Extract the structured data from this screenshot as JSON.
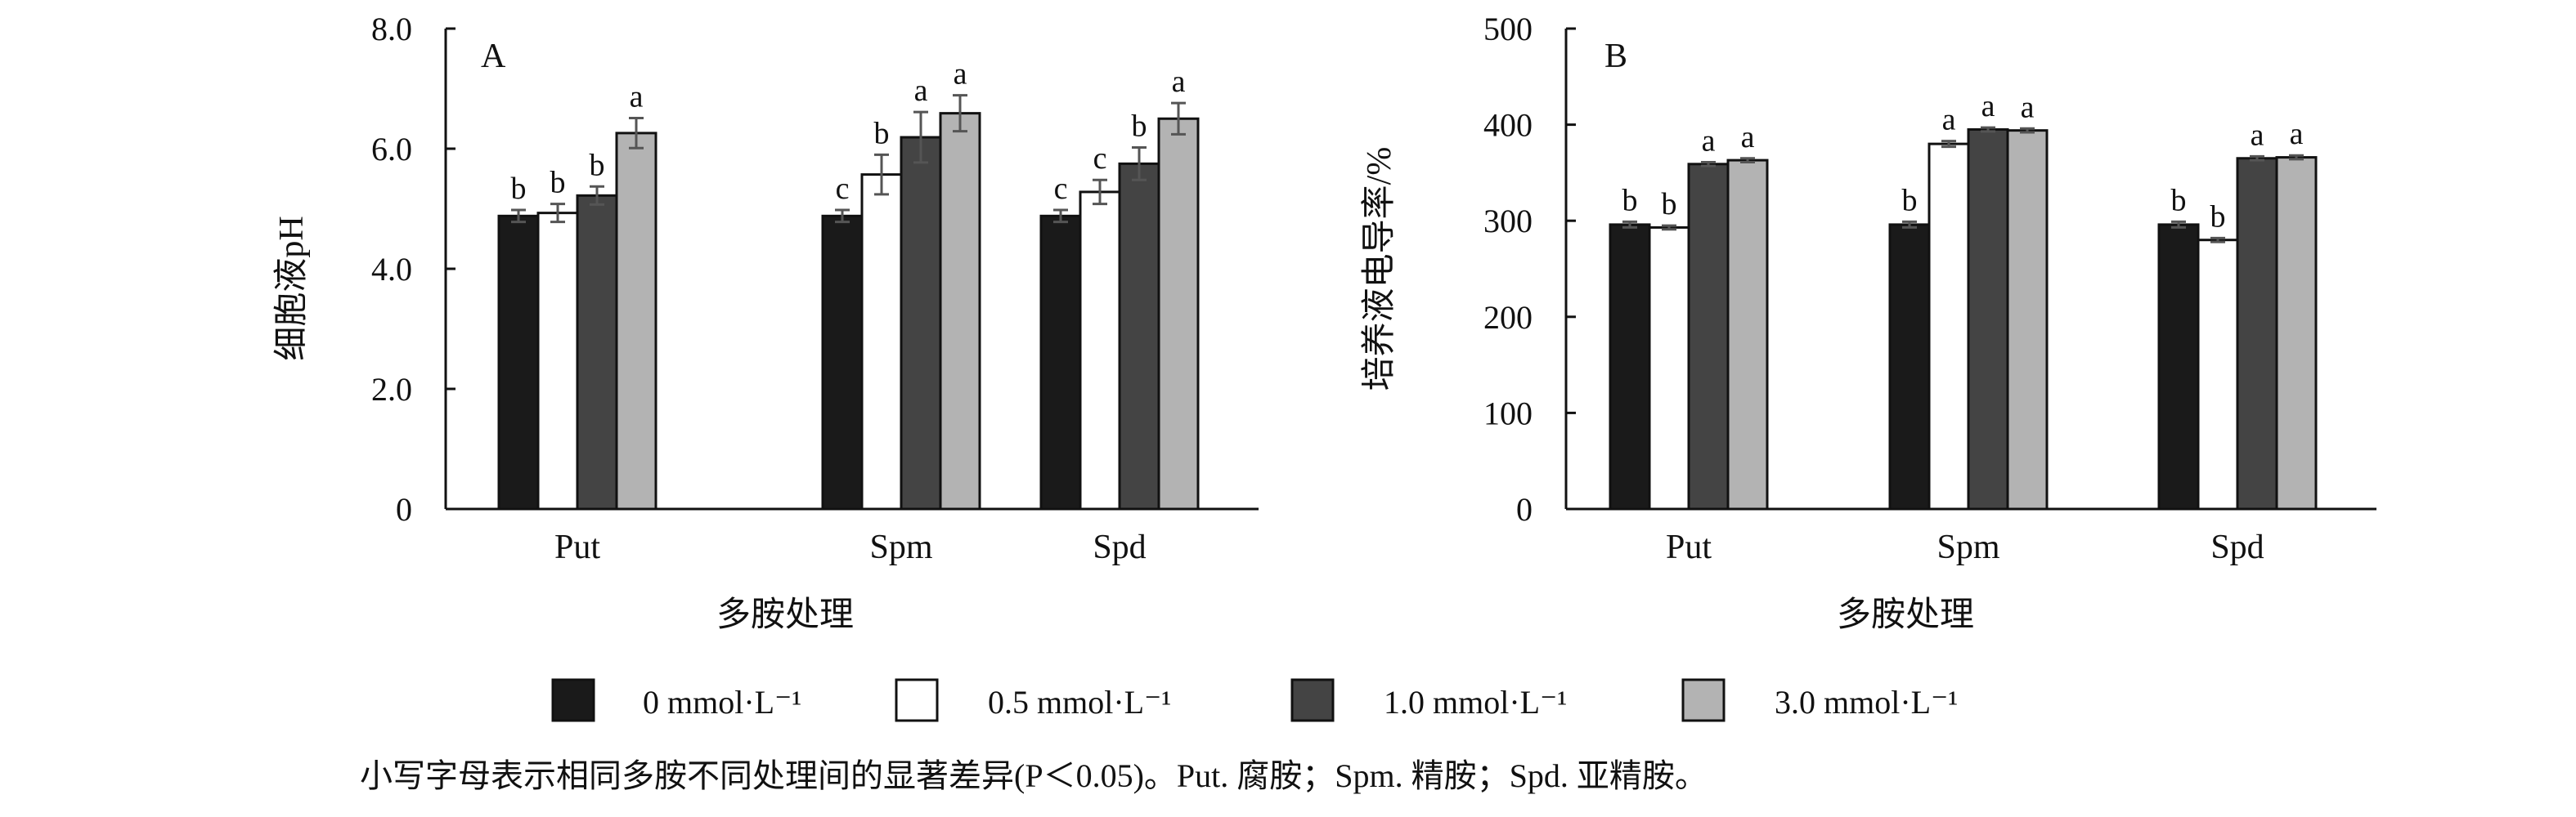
{
  "colors": {
    "series": [
      "#1a1a1a",
      "#ffffff",
      "#444444",
      "#b3b3b3"
    ],
    "stroke": "#111111",
    "error_bar": "#555555"
  },
  "legend": {
    "items": [
      "0 mmol·L⁻¹",
      "0.5 mmol·L⁻¹",
      "1.0 mmol·L⁻¹",
      "3.0 mmol·L⁻¹"
    ]
  },
  "caption": "小写字母表示相同多胺不同处理间的显著差异(P＜0.05)。Put. 腐胺；Spm. 精胺；Spd. 亚精胺。",
  "chart_data": [
    {
      "type": "bar",
      "panel_label": "A",
      "categories": [
        "Put",
        "Spm",
        "Spd"
      ],
      "xlabel": "多胺处理",
      "ylabel": "细胞液pH",
      "ylim": [
        0,
        8
      ],
      "yticks": [
        0,
        2,
        4,
        6,
        8
      ],
      "ytick_labels": [
        "0",
        "2.0",
        "4.0",
        "6.0",
        "8.0"
      ],
      "grid": false,
      "series": [
        {
          "name": "0 mmol·L⁻¹",
          "values": [
            4.88,
            4.88,
            4.88
          ],
          "errors": [
            0.1,
            0.1,
            0.1
          ],
          "letters": [
            "b",
            "c",
            "c"
          ]
        },
        {
          "name": "0.5 mmol·L⁻¹",
          "values": [
            4.93,
            5.57,
            5.28
          ],
          "errors": [
            0.15,
            0.33,
            0.2
          ],
          "letters": [
            "b",
            "b",
            "c"
          ]
        },
        {
          "name": "1.0 mmol·L⁻¹",
          "values": [
            5.22,
            6.19,
            5.75
          ],
          "errors": [
            0.15,
            0.42,
            0.27
          ],
          "letters": [
            "b",
            "a",
            "b"
          ]
        },
        {
          "name": "3.0 mmol·L⁻¹",
          "values": [
            6.26,
            6.59,
            6.5
          ],
          "errors": [
            0.25,
            0.3,
            0.26
          ],
          "letters": [
            "a",
            "a",
            "a"
          ]
        }
      ]
    },
    {
      "type": "bar",
      "panel_label": "B",
      "categories": [
        "Put",
        "Spm",
        "Spd"
      ],
      "xlabel": "多胺处理",
      "ylabel": "培养液电导率/%",
      "ylim": [
        0,
        500
      ],
      "yticks": [
        0,
        100,
        200,
        300,
        400,
        500
      ],
      "ytick_labels": [
        "0",
        "100",
        "200",
        "300",
        "400",
        "500"
      ],
      "grid": false,
      "series": [
        {
          "name": "0 mmol·L⁻¹",
          "values": [
            296,
            296,
            296
          ],
          "errors": [
            3,
            3,
            3
          ],
          "letters": [
            "b",
            "b",
            "b"
          ]
        },
        {
          "name": "0.5 mmol·L⁻¹",
          "values": [
            293,
            380,
            280
          ],
          "errors": [
            2,
            3,
            2
          ],
          "letters": [
            "b",
            "a",
            "b"
          ]
        },
        {
          "name": "1.0 mmol·L⁻¹",
          "values": [
            359,
            395,
            365
          ],
          "errors": [
            2,
            2,
            2
          ],
          "letters": [
            "a",
            "a",
            "a"
          ]
        },
        {
          "name": "3.0 mmol·L⁻¹",
          "values": [
            363,
            394,
            366
          ],
          "errors": [
            2,
            2,
            2
          ],
          "letters": [
            "a",
            "a",
            "a"
          ]
        }
      ]
    }
  ]
}
